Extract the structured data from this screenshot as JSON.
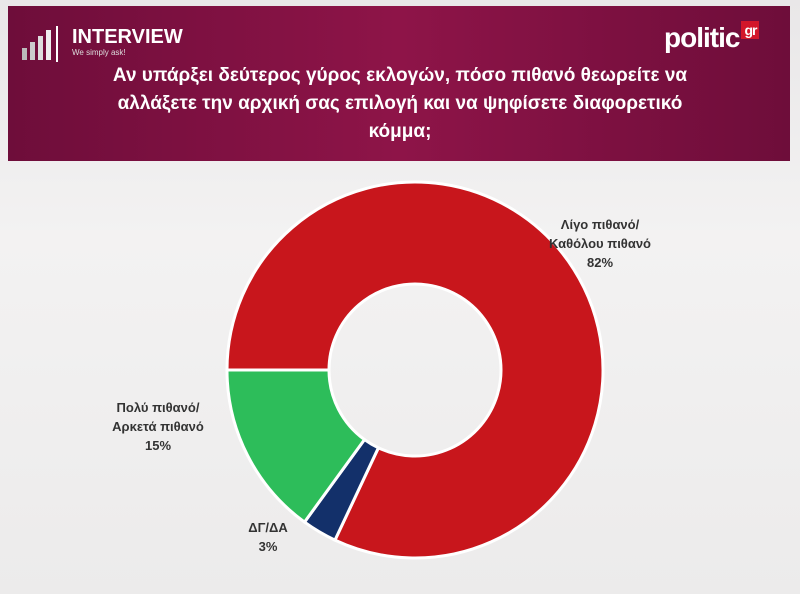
{
  "header": {
    "brand": "INTERVIEW",
    "slogan": "We simply ask!",
    "logo": "politic",
    "logo_suffix": "gr"
  },
  "chart_data": {
    "type": "donut",
    "title": "Αν υπάρξει δεύτερος γύρος εκλογών, πόσο πιθανό θεωρείτε να αλλάξετε την αρχική σας επιλογή και να ψηφίσετε διαφορετικό κόμμα;",
    "categories": [
      "Λίγο πιθανό/Καθόλου πιθανό",
      "ΔΓ/ΔΑ",
      "Πολύ πιθανό/Αρκετά πιθανό"
    ],
    "values": [
      82,
      3,
      15
    ],
    "value_labels": [
      "82%",
      "3%",
      "15%"
    ],
    "colors": [
      "#c8161c",
      "#13306a",
      "#2dbd5a"
    ]
  }
}
